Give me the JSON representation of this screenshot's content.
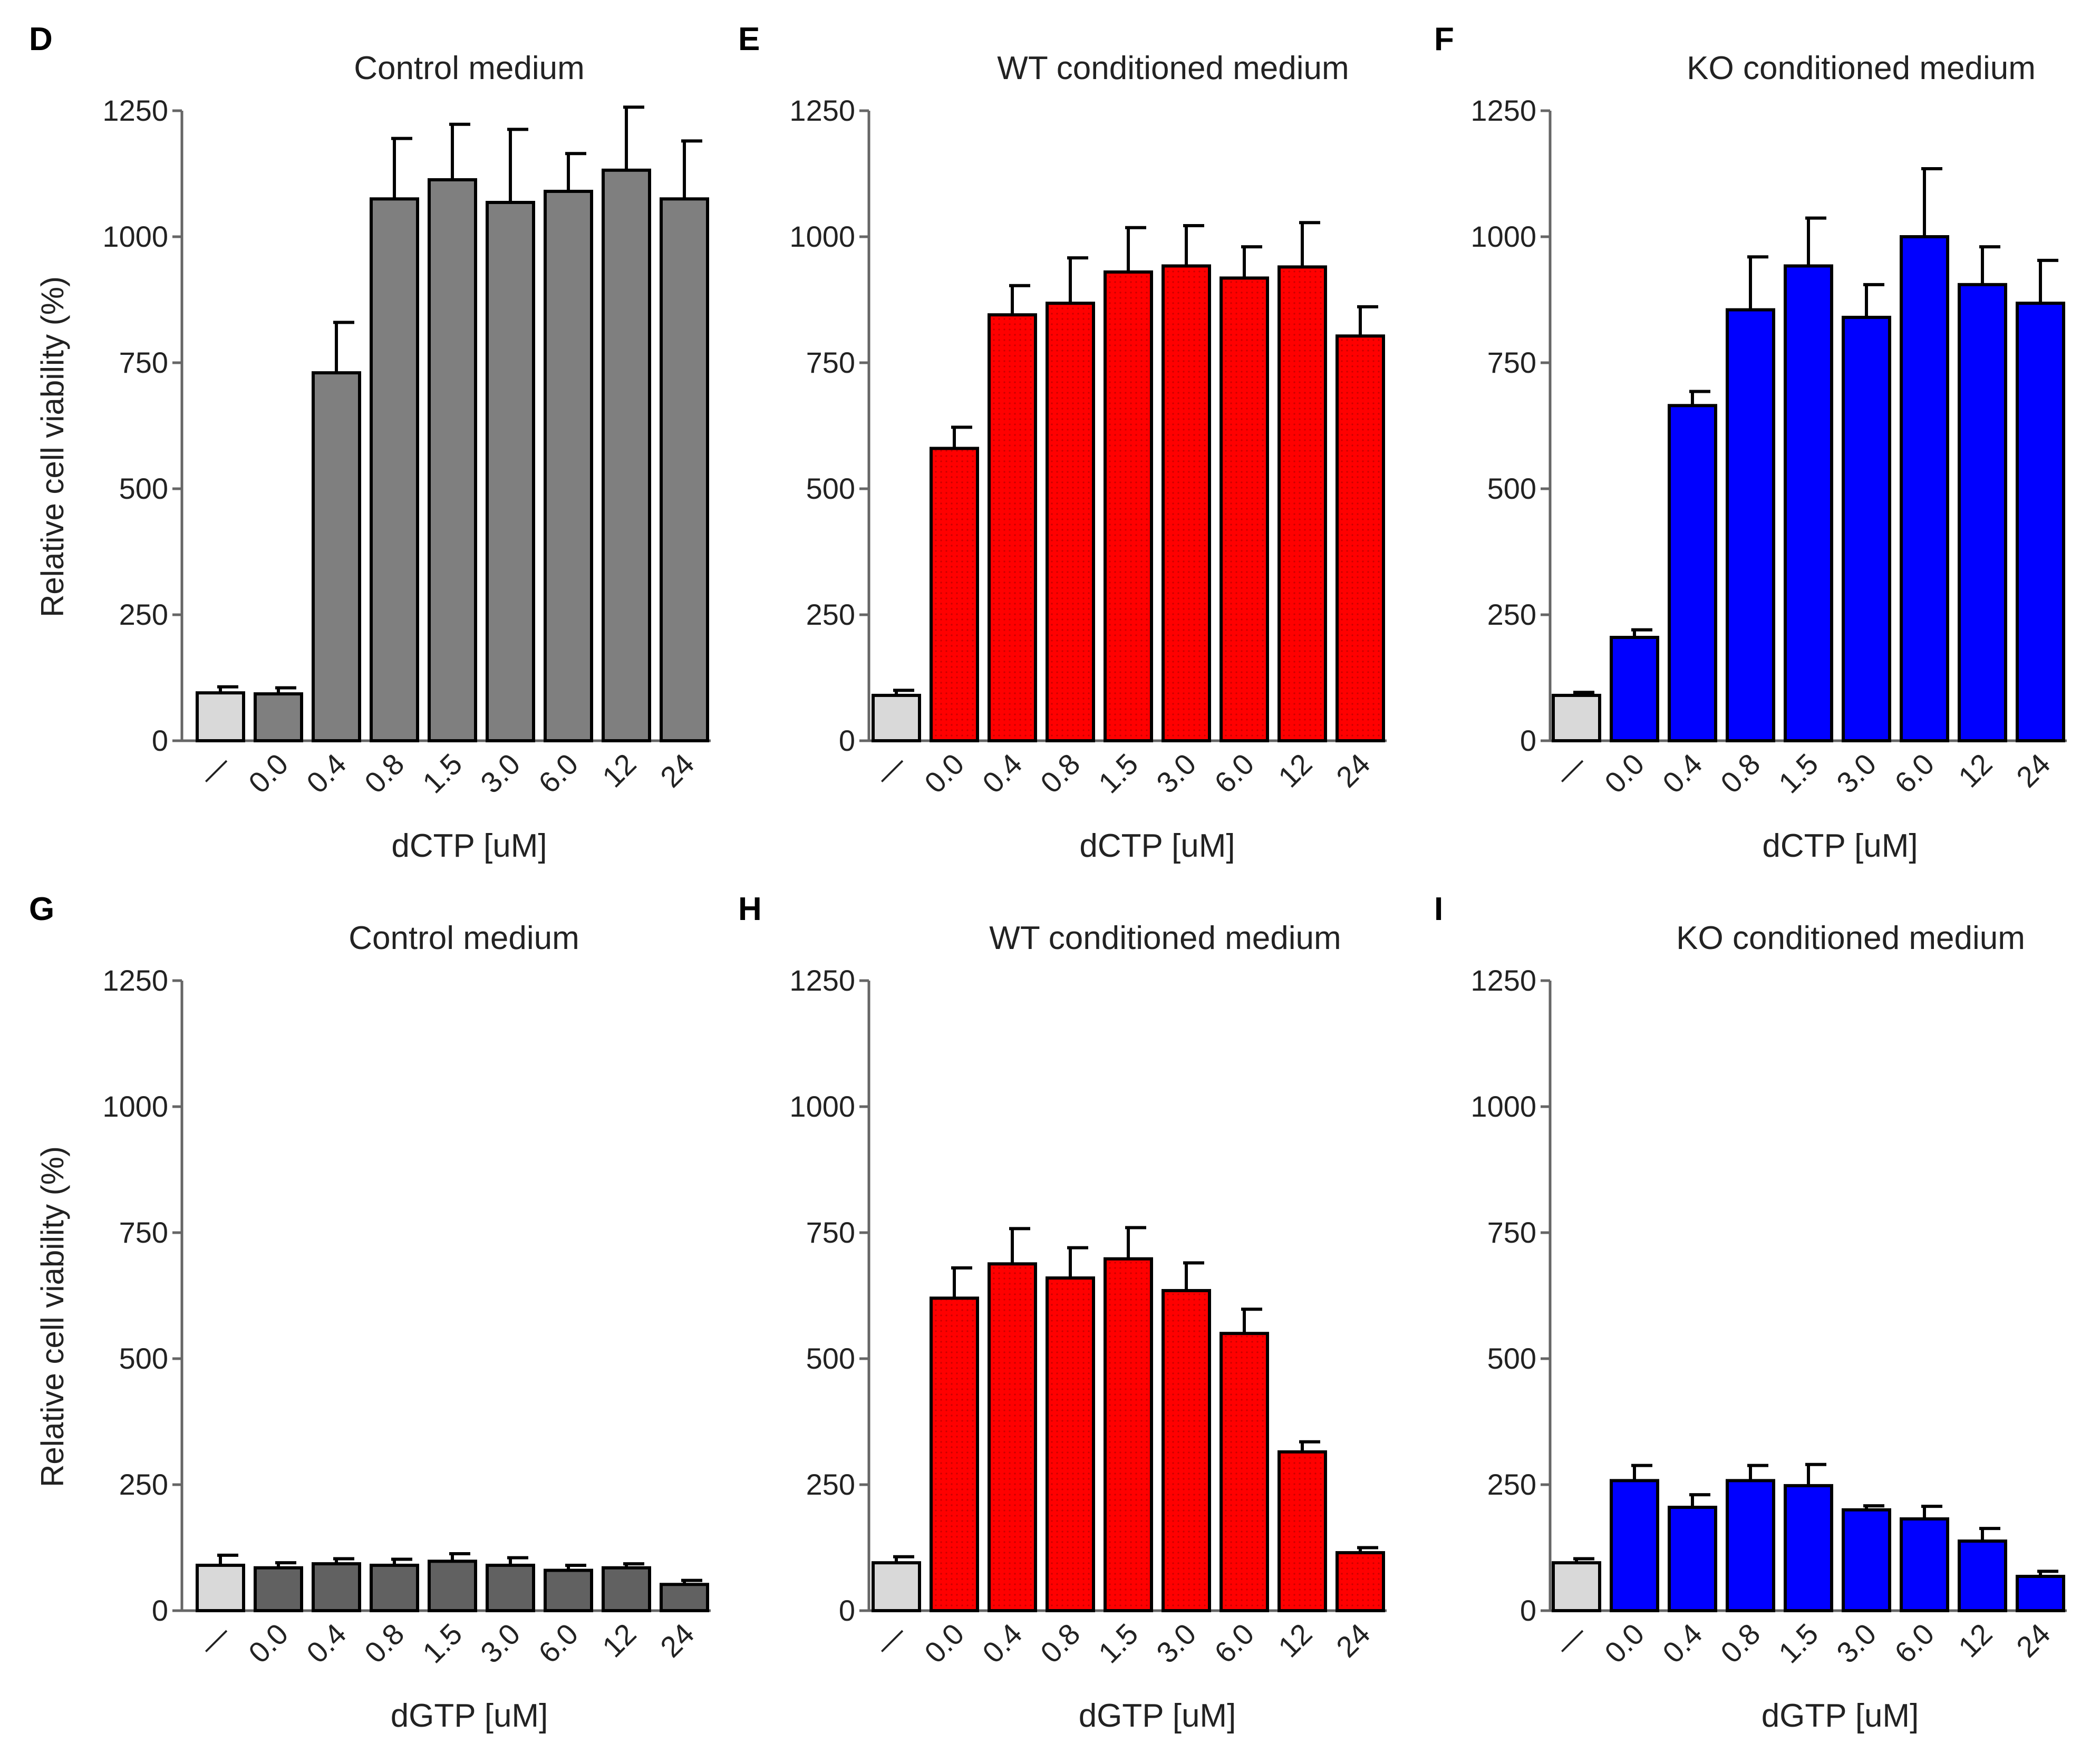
{
  "figure": {
    "panel_letters": [
      "D",
      "E",
      "F",
      "G",
      "H",
      "I"
    ]
  },
  "colors": {
    "control_bar": "#d9d9d9",
    "gray_bar": "#7f7f7f",
    "gray_bar_dark": "#616161",
    "red_bar": "#ff0000",
    "blue_bar": "#0000ff",
    "axis": "#666666",
    "outline": "#000000"
  },
  "chart_data": [
    {
      "panel": "D",
      "type": "bar",
      "title": "Control medium",
      "xlabel": "dCTP [uM]",
      "ylabel": "Relative  cell viability  (%)",
      "ylim": [
        0,
        1250
      ],
      "yticks": [
        "0",
        "250",
        "500",
        "750",
        "1000",
        "1250"
      ],
      "categories": [
        "—",
        "0.0",
        "0.4",
        "0.8",
        "1.5",
        "3.0",
        "6.0",
        "12",
        "24"
      ],
      "values": [
        95,
        93,
        730,
        1075,
        1113,
        1068,
        1090,
        1132,
        1075
      ],
      "errors": [
        12,
        12,
        100,
        120,
        110,
        145,
        75,
        125,
        115
      ],
      "bar_colors": [
        "control_bar",
        "gray_bar",
        "gray_bar",
        "gray_bar",
        "gray_bar",
        "gray_bar",
        "gray_bar",
        "gray_bar",
        "gray_bar"
      ]
    },
    {
      "panel": "E",
      "type": "bar",
      "title": "WT conditioned  medium",
      "xlabel": "dCTP [uM]",
      "ylabel": "",
      "ylim": [
        0,
        1250
      ],
      "yticks": [
        "0",
        "250",
        "500",
        "750",
        "1000",
        "1250"
      ],
      "categories": [
        "—",
        "0.0",
        "0.4",
        "0.8",
        "1.5",
        "3.0",
        "6.0",
        "12",
        "24"
      ],
      "values": [
        90,
        580,
        845,
        868,
        930,
        942,
        918,
        940,
        803
      ],
      "errors": [
        10,
        42,
        58,
        90,
        88,
        80,
        62,
        88,
        58
      ],
      "bar_colors": [
        "control_bar",
        "red_bar",
        "red_bar",
        "red_bar",
        "red_bar",
        "red_bar",
        "red_bar",
        "red_bar",
        "red_bar"
      ]
    },
    {
      "panel": "F",
      "type": "bar",
      "title": "KO conditioned medium",
      "xlabel": "dCTP [uM]",
      "ylabel": "",
      "ylim": [
        0,
        1250
      ],
      "yticks": [
        "0",
        "250",
        "500",
        "750",
        "1000",
        "1250"
      ],
      "categories": [
        "—",
        "0.0",
        "0.4",
        "0.8",
        "1.5",
        "3.0",
        "6.0",
        "12",
        "24"
      ],
      "values": [
        90,
        205,
        665,
        855,
        942,
        840,
        1000,
        905,
        868
      ],
      "errors": [
        6,
        15,
        28,
        105,
        95,
        65,
        135,
        75,
        85
      ],
      "bar_colors": [
        "control_bar",
        "blue_bar",
        "blue_bar",
        "blue_bar",
        "blue_bar",
        "blue_bar",
        "blue_bar",
        "blue_bar",
        "blue_bar"
      ]
    },
    {
      "panel": "G",
      "type": "bar",
      "title": "Control  medium",
      "xlabel": "dGTP [uM]",
      "ylabel": "Relative  cell viability  (%)",
      "ylim": [
        0,
        1250
      ],
      "yticks": [
        "0",
        "250",
        "500",
        "750",
        "1000",
        "1250"
      ],
      "categories": [
        "—",
        "0.0",
        "0.4",
        "0.8",
        "1.5",
        "3.0",
        "6.0",
        "12",
        "24"
      ],
      "values": [
        90,
        85,
        93,
        90,
        98,
        90,
        80,
        85,
        52
      ],
      "errors": [
        20,
        10,
        10,
        12,
        15,
        15,
        10,
        8,
        8
      ],
      "bar_colors": [
        "control_bar",
        "gray_bar_dark",
        "gray_bar_dark",
        "gray_bar_dark",
        "gray_bar_dark",
        "gray_bar_dark",
        "gray_bar_dark",
        "gray_bar_dark",
        "gray_bar_dark"
      ]
    },
    {
      "panel": "H",
      "type": "bar",
      "title": "WT conditioned  medium",
      "xlabel": "dGTP [uM]",
      "ylabel": "",
      "ylim": [
        0,
        1250
      ],
      "yticks": [
        "0",
        "250",
        "500",
        "750",
        "1000",
        "1250"
      ],
      "categories": [
        "—",
        "0.0",
        "0.4",
        "0.8",
        "1.5",
        "3.0",
        "6.0",
        "12",
        "24"
      ],
      "values": [
        95,
        620,
        688,
        660,
        698,
        635,
        550,
        315,
        115
      ],
      "errors": [
        12,
        60,
        70,
        60,
        62,
        55,
        48,
        20,
        10
      ],
      "bar_colors": [
        "control_bar",
        "red_bar",
        "red_bar",
        "red_bar",
        "red_bar",
        "red_bar",
        "red_bar",
        "red_bar",
        "red_bar"
      ]
    },
    {
      "panel": "I",
      "type": "bar",
      "title": "KO conditioned medium",
      "xlabel": "dGTP [uM]",
      "ylabel": "",
      "ylim": [
        0,
        1250
      ],
      "yticks": [
        "0",
        "250",
        "500",
        "750",
        "1000",
        "1250"
      ],
      "categories": [
        "—",
        "0.0",
        "0.4",
        "0.8",
        "1.5",
        "3.0",
        "6.0",
        "12",
        "24"
      ],
      "values": [
        95,
        258,
        205,
        258,
        248,
        200,
        182,
        138,
        68
      ],
      "errors": [
        8,
        30,
        25,
        30,
        42,
        8,
        25,
        25,
        10
      ],
      "bar_colors": [
        "control_bar",
        "blue_bar",
        "blue_bar",
        "blue_bar",
        "blue_bar",
        "blue_bar",
        "blue_bar",
        "blue_bar",
        "blue_bar"
      ]
    }
  ]
}
